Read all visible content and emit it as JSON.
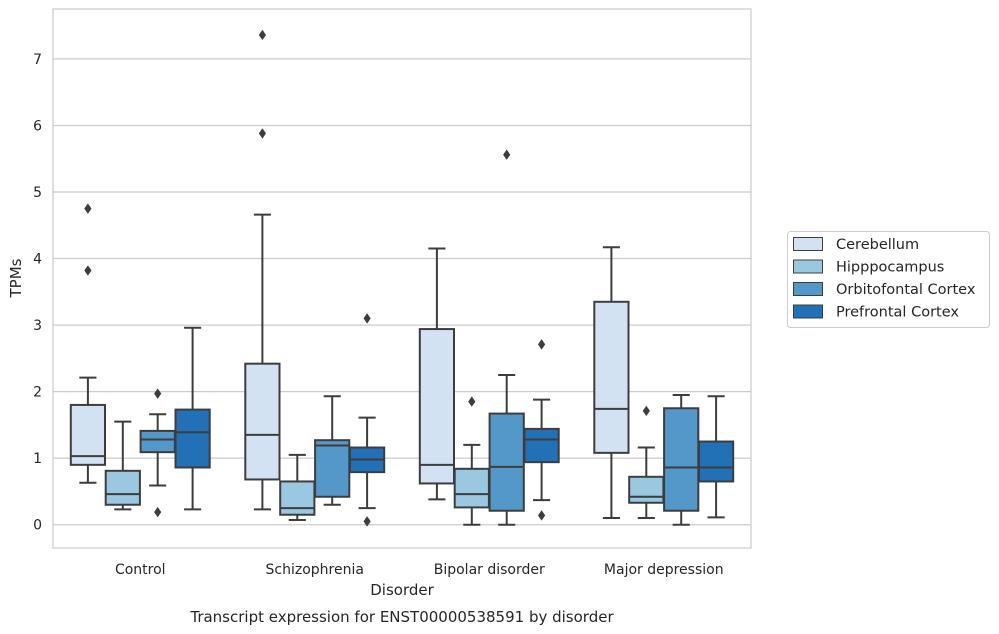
{
  "chart_data": {
    "type": "box",
    "title": "",
    "caption": "Transcript expression for ENST00000538591 by disorder",
    "xlabel": "Disorder",
    "ylabel": "TPMs",
    "ylim": [
      -0.35,
      7.75
    ],
    "yticks": [
      0,
      1,
      2,
      3,
      4,
      5,
      6,
      7
    ],
    "grid": "horizontal",
    "legend_position": "right",
    "categories": [
      "Control",
      "Schizophrenia",
      "Bipolar disorder",
      "Major depression"
    ],
    "series": [
      {
        "name": "Cerebellum",
        "color": "#d2e2f2",
        "boxes": [
          {
            "whisker_low": 0.63,
            "q1": 0.9,
            "median": 1.03,
            "q3": 1.8,
            "whisker_high": 2.21,
            "outliers": [
              3.82,
              4.75
            ]
          },
          {
            "whisker_low": 0.23,
            "q1": 0.68,
            "median": 1.35,
            "q3": 2.42,
            "whisker_high": 4.66,
            "outliers": [
              5.88,
              7.36
            ]
          },
          {
            "whisker_low": 0.38,
            "q1": 0.62,
            "median": 0.9,
            "q3": 2.94,
            "whisker_high": 4.15,
            "outliers": []
          },
          {
            "whisker_low": 0.1,
            "q1": 1.08,
            "median": 1.74,
            "q3": 3.35,
            "whisker_high": 4.17,
            "outliers": []
          }
        ]
      },
      {
        "name": "Hipppocampus",
        "color": "#9ac8e0",
        "boxes": [
          {
            "whisker_low": 0.23,
            "q1": 0.3,
            "median": 0.46,
            "q3": 0.81,
            "whisker_high": 1.55,
            "outliers": []
          },
          {
            "whisker_low": 0.07,
            "q1": 0.15,
            "median": 0.25,
            "q3": 0.65,
            "whisker_high": 1.05,
            "outliers": []
          },
          {
            "whisker_low": 0.0,
            "q1": 0.26,
            "median": 0.46,
            "q3": 0.84,
            "whisker_high": 1.2,
            "outliers": [
              1.85
            ]
          },
          {
            "whisker_low": 0.1,
            "q1": 0.33,
            "median": 0.42,
            "q3": 0.72,
            "whisker_high": 1.16,
            "outliers": [
              1.71
            ]
          }
        ]
      },
      {
        "name": "Orbitofontal Cortex",
        "color": "#5398c8",
        "boxes": [
          {
            "whisker_low": 0.59,
            "q1": 1.09,
            "median": 1.28,
            "q3": 1.41,
            "whisker_high": 1.66,
            "outliers": [
              0.19,
              1.97
            ]
          },
          {
            "whisker_low": 0.3,
            "q1": 0.42,
            "median": 1.19,
            "q3": 1.27,
            "whisker_high": 1.93,
            "outliers": []
          },
          {
            "whisker_low": 0.0,
            "q1": 0.21,
            "median": 0.87,
            "q3": 1.67,
            "whisker_high": 2.25,
            "outliers": [
              5.56
            ]
          },
          {
            "whisker_low": 0.0,
            "q1": 0.21,
            "median": 0.86,
            "q3": 1.75,
            "whisker_high": 1.95,
            "outliers": []
          }
        ]
      },
      {
        "name": "Prefrontal Cortex",
        "color": "#2270b5",
        "boxes": [
          {
            "whisker_low": 0.23,
            "q1": 0.86,
            "median": 1.39,
            "q3": 1.73,
            "whisker_high": 2.96,
            "outliers": []
          },
          {
            "whisker_low": 0.25,
            "q1": 0.79,
            "median": 0.98,
            "q3": 1.16,
            "whisker_high": 1.61,
            "outliers": [
              0.05,
              3.1
            ]
          },
          {
            "whisker_low": 0.37,
            "q1": 0.94,
            "median": 1.28,
            "q3": 1.44,
            "whisker_high": 1.88,
            "outliers": [
              0.14,
              2.71
            ]
          },
          {
            "whisker_low": 0.11,
            "q1": 0.65,
            "median": 0.86,
            "q3": 1.25,
            "whisker_high": 1.93,
            "outliers": []
          }
        ]
      }
    ]
  }
}
